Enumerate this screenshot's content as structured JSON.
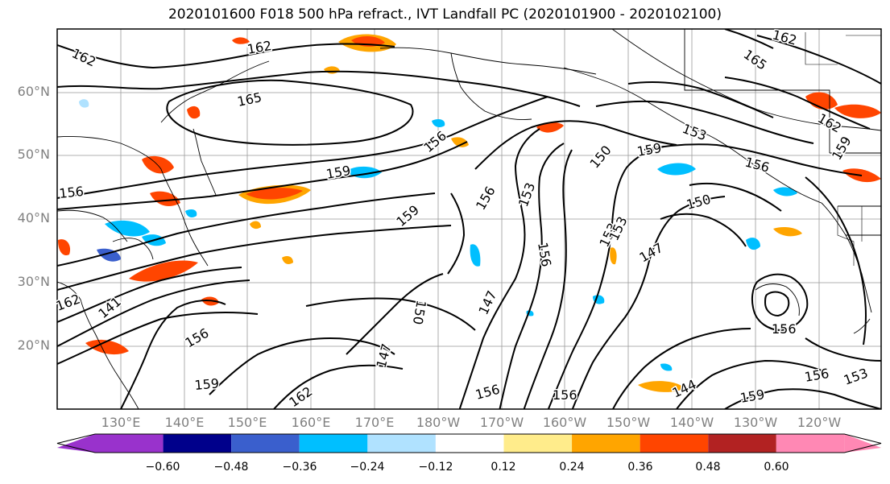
{
  "title": "2020101600 F018 500 hPa refract., IVT Landfall PC (2020101900 - 2020102100)",
  "lat_labels": [
    "60°N",
    "50°N",
    "40°N",
    "30°N",
    "20°N"
  ],
  "lon_labels": [
    "130°E",
    "140°E",
    "150°E",
    "160°E",
    "170°E",
    "180°W",
    "170°W",
    "160°W",
    "150°W",
    "140°W",
    "130°W",
    "120°W"
  ],
  "contour_labels": [
    "162",
    "162",
    "165",
    "156",
    "159",
    "156",
    "159",
    "162",
    "156",
    "159",
    "162",
    "156",
    "153",
    "156",
    "150",
    "147",
    "153",
    "159",
    "147",
    "150",
    "153",
    "156",
    "165",
    "162",
    "159",
    "156",
    "153",
    "153",
    "150",
    "144",
    "156",
    "159",
    "156",
    "162",
    "141",
    "147",
    "156"
  ],
  "colorbar": {
    "ticks": [
      "−0.60",
      "−0.48",
      "−0.36",
      "−0.24",
      "−0.12",
      "0.12",
      "0.24",
      "0.36",
      "0.48",
      "0.60"
    ],
    "colors": [
      "#9932CC",
      "#00008B",
      "#3A5FCD",
      "#00BFFF",
      "#B0E2FF",
      "#FFFFFF",
      "#FFEC8B",
      "#FFA500",
      "#FF4500",
      "#B22222",
      "#FF88B4"
    ]
  },
  "positive_color": "#FF4500",
  "negative_color": "#00BFFF",
  "contour_color": "#000000"
}
